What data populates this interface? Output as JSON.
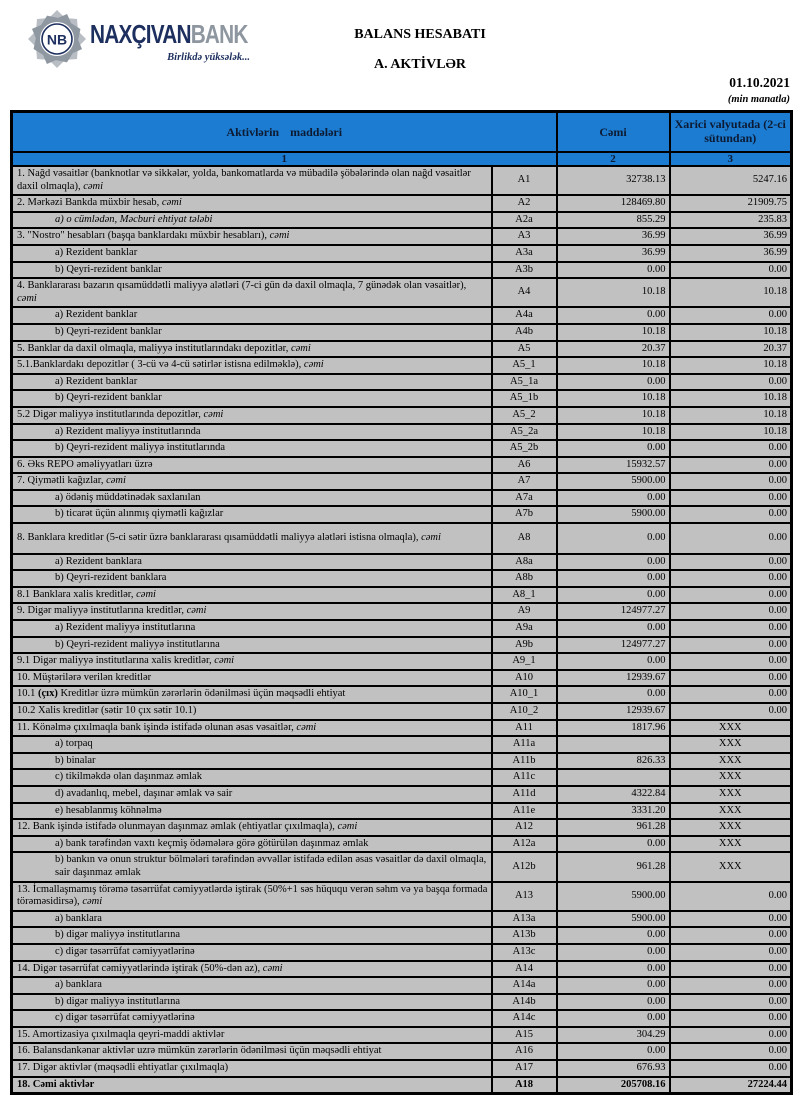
{
  "brand": {
    "monogram": "NB",
    "name_primary": "NAXÇIVAN",
    "name_secondary": "BANK",
    "tagline": "Birlikdə yüksələk...",
    "navy": "#1d2f5e",
    "gray": "#8e969f"
  },
  "page": {
    "title": "BALANS HESABATI",
    "subtitle": "A. AKTİVLƏR",
    "date": "01.10.2021",
    "unit_note": "(min manatla)"
  },
  "colors": {
    "header_blue": "#1b7cd1",
    "row_gray": "#c1c1c1",
    "border": "#000000"
  },
  "table": {
    "col_headers": {
      "items": "Aktivlərin maddələri",
      "total": "Cəmi",
      "foreign": "Xarici valyutada (2-ci sütundan)"
    },
    "col_numbers": {
      "c1": "1",
      "c2": "2",
      "c3": "3"
    },
    "rows": [
      {
        "code": "A1",
        "label": [
          {
            "t": "1. Nağd vəsaitlər (banknotlar və sikkələr, yolda, bankomatlarda və mübadilə şöbələrində olan nağd vəsaitlər daxil olmaqla), "
          },
          {
            "t": "cəmi",
            "s": "i"
          }
        ],
        "total": "32738.13",
        "fx": "5247.16"
      },
      {
        "code": "A2",
        "label": [
          {
            "t": "2. Mərkəzi Bankda müxbir hesab, "
          },
          {
            "t": "cəmi",
            "s": "i"
          }
        ],
        "total": "128469.80",
        "fx": "21909.75"
      },
      {
        "code": "A2a",
        "indent": true,
        "label": [
          {
            "t": "a) o cümlədən, Məcburi ehtiyat tələbi",
            "s": "i"
          }
        ],
        "total": "855.29",
        "fx": "235.83"
      },
      {
        "code": "A3",
        "label": [
          {
            "t": "3. \"Nostro\" hesabları (başqa banklardakı müxbir hesabları), "
          },
          {
            "t": "cəmi",
            "s": "i"
          }
        ],
        "total": "36.99",
        "fx": "36.99"
      },
      {
        "code": "A3a",
        "indent": true,
        "label": [
          {
            "t": "a) Rezident banklar"
          }
        ],
        "total": "36.99",
        "fx": "36.99"
      },
      {
        "code": "A3b",
        "indent": true,
        "label": [
          {
            "t": "b) Qeyri-rezident banklar"
          }
        ],
        "total": "0.00",
        "fx": "0.00"
      },
      {
        "code": "A4",
        "clip": true,
        "label": [
          {
            "t": "4. Banklararası bazarın qısamüddətli maliyyə alətləri (7-ci gün də daxil olmaqla, 7 günədək olan vəsaitlər), "
          },
          {
            "t": "cəmi",
            "s": "i"
          }
        ],
        "total": "10.18",
        "fx": "10.18"
      },
      {
        "code": "A4a",
        "indent": true,
        "label": [
          {
            "t": "a) Rezident banklar"
          }
        ],
        "total": "0.00",
        "fx": "0.00"
      },
      {
        "code": "A4b",
        "indent": true,
        "label": [
          {
            "t": "b) Qeyri-rezident banklar"
          }
        ],
        "total": "10.18",
        "fx": "10.18"
      },
      {
        "code": "A5",
        "label": [
          {
            "t": "5. Banklar da daxil olmaqla, maliyyə institutlarındakı depozitlər, "
          },
          {
            "t": "cəmi",
            "s": "i"
          }
        ],
        "total": "20.37",
        "fx": "20.37"
      },
      {
        "code": "A5_1",
        "label": [
          {
            "t": "5.1.Banklardakı depozitlər ( 3-cü və 4-cü sətirlər istisna edilməklə), "
          },
          {
            "t": "cəmi",
            "s": "i"
          }
        ],
        "total": "10.18",
        "fx": "10.18"
      },
      {
        "code": "A5_1a",
        "indent": true,
        "label": [
          {
            "t": "a) Rezident banklar"
          }
        ],
        "total": "0.00",
        "fx": "0.00"
      },
      {
        "code": "A5_1b",
        "indent": true,
        "label": [
          {
            "t": "b) Qeyri-rezident banklar"
          }
        ],
        "total": "10.18",
        "fx": "10.18"
      },
      {
        "code": "A5_2",
        "label": [
          {
            "t": "5.2 Digər maliyyə institutlarında depozitlər, "
          },
          {
            "t": "cəmi",
            "s": "i"
          }
        ],
        "total": "10.18",
        "fx": "10.18"
      },
      {
        "code": "A5_2a",
        "indent": true,
        "label": [
          {
            "t": "a) Rezident maliyyə institutlarında"
          }
        ],
        "total": "10.18",
        "fx": "10.18"
      },
      {
        "code": "A5_2b",
        "indent": true,
        "label": [
          {
            "t": "b) Qeyri-rezident maliyyə institutlarında"
          }
        ],
        "total": "0.00",
        "fx": "0.00"
      },
      {
        "code": "A6",
        "label": [
          {
            "t": "6. Əks REPO əməliyyatları üzrə"
          }
        ],
        "total": "15932.57",
        "fx": "0.00"
      },
      {
        "code": "A7",
        "label": [
          {
            "t": "7. Qiymətli kağızlar, "
          },
          {
            "t": "cəmi",
            "s": "i"
          }
        ],
        "total": "5900.00",
        "fx": "0.00"
      },
      {
        "code": "A7a",
        "indent": true,
        "label": [
          {
            "t": "a) ödəniş müddətinədək saxlanılan"
          }
        ],
        "total": "0.00",
        "fx": "0.00"
      },
      {
        "code": "A7b",
        "indent": true,
        "label": [
          {
            "t": "b) ticarət üçün alınmış qiymətli kağızlar"
          }
        ],
        "total": "5900.00",
        "fx": "0.00"
      },
      {
        "code": "A8",
        "pad": true,
        "label": [
          {
            "t": "8. Banklara kreditlər (5-ci sətir üzrə banklararası qısamüddətli maliyyə alətləri istisna olmaqla), "
          },
          {
            "t": "cəmi",
            "s": "i"
          }
        ],
        "total": "0.00",
        "fx": "0.00"
      },
      {
        "code": "A8a",
        "indent": true,
        "label": [
          {
            "t": "a) Rezident banklara"
          }
        ],
        "total": "0.00",
        "fx": "0.00"
      },
      {
        "code": "A8b",
        "indent": true,
        "label": [
          {
            "t": "b) Qeyri-rezident banklara"
          }
        ],
        "total": "0.00",
        "fx": "0.00"
      },
      {
        "code": "A8_1",
        "label": [
          {
            "t": "8.1 Banklara xalis kreditlər, "
          },
          {
            "t": "cəmi",
            "s": "i"
          }
        ],
        "total": "0.00",
        "fx": "0.00"
      },
      {
        "code": "A9",
        "label": [
          {
            "t": "9. Digər maliyyə institutlarına kreditlər, "
          },
          {
            "t": "cəmi",
            "s": "i"
          }
        ],
        "total": "124977.27",
        "fx": "0.00"
      },
      {
        "code": "A9a",
        "indent": true,
        "label": [
          {
            "t": "a) Rezident maliyyə institutlarına"
          }
        ],
        "total": "0.00",
        "fx": "0.00"
      },
      {
        "code": "A9b",
        "indent": true,
        "label": [
          {
            "t": "b) Qeyri-rezident maliyyə institutlarına"
          }
        ],
        "total": "124977.27",
        "fx": "0.00"
      },
      {
        "code": "A9_1",
        "label": [
          {
            "t": "9.1 Digər maliyyə institutlarına xalis kreditlər, "
          },
          {
            "t": "cəmi",
            "s": "i"
          }
        ],
        "total": "0.00",
        "fx": "0.00"
      },
      {
        "code": "A10",
        "label": [
          {
            "t": "10. Müştərilərə verilən kreditlər"
          }
        ],
        "total": "12939.67",
        "fx": "0.00"
      },
      {
        "code": "A10_1",
        "label": [
          {
            "t": "10.1 "
          },
          {
            "t": "(çıx)",
            "s": "b"
          },
          {
            "t": " Kreditlər üzrə mümkün zərərlərin ödənilməsi üçün məqsədli ehtiyat"
          }
        ],
        "total": "0.00",
        "fx": "0.00"
      },
      {
        "code": "A10_2",
        "label": [
          {
            "t": "10.2 Xalis kreditlər (sətir 10 çıx sətir 10.1)"
          }
        ],
        "total": "12939.67",
        "fx": "0.00"
      },
      {
        "code": "A11",
        "label": [
          {
            "t": "11. Könəlmə çıxılmaqla bank işində istifadə olunan əsas vəsaitlər, "
          },
          {
            "t": "cəmi",
            "s": "i"
          }
        ],
        "total": "1817.96",
        "fx": "XXX"
      },
      {
        "code": "A11a",
        "indent": true,
        "label": [
          {
            "t": "a) torpaq"
          }
        ],
        "total": "",
        "fx": "XXX"
      },
      {
        "code": "A11b",
        "indent": true,
        "label": [
          {
            "t": "b) binalar"
          }
        ],
        "total": "826.33",
        "fx": "XXX"
      },
      {
        "code": "A11c",
        "indent": true,
        "label": [
          {
            "t": "c) tikilməkdə olan daşınmaz əmlak"
          }
        ],
        "total": "",
        "fx": "XXX"
      },
      {
        "code": "A11d",
        "indent": true,
        "label": [
          {
            "t": "d) avadanlıq, mebel, daşınar əmlak və sair"
          }
        ],
        "total": "4322.84",
        "fx": "XXX"
      },
      {
        "code": "A11e",
        "indent": true,
        "label": [
          {
            "t": "e) hesablanmış köhnəlmə"
          }
        ],
        "total": "3331.20",
        "fx": "XXX"
      },
      {
        "code": "A12",
        "label": [
          {
            "t": "12. Bank işində istifadə olunmayan daşınmaz əmlak (ehtiyatlar çıxılmaqla), "
          },
          {
            "t": "cəmi",
            "s": "i"
          }
        ],
        "total": "961.28",
        "fx": "XXX"
      },
      {
        "code": "A12a",
        "indent": true,
        "label": [
          {
            "t": "a) bank tərəfindən vaxtı keçmiş ödəmələrə görə götürülən daşınmaz əmlak"
          }
        ],
        "total": "0.00",
        "fx": "XXX"
      },
      {
        "code": "A12b",
        "indent": true,
        "label": [
          {
            "t": "b) bankın və onun struktur bölmələri tərəfindən əvvəllər istifadə edilən əsas vəsaitlər də daxil olmaqla, sair daşınmaz əmlak"
          }
        ],
        "total": "961.28",
        "fx": "XXX"
      },
      {
        "code": "A13",
        "label": [
          {
            "t": "13. İcmallaşmamış törəmə təsərrüfat cəmiyyətlərdə iştirak (50%+1 səs hüququ verən səhm və ya başqa formada törəməsidirsə), "
          },
          {
            "t": "cəmi",
            "s": "i"
          }
        ],
        "total": "5900.00",
        "fx": "0.00"
      },
      {
        "code": "A13a",
        "indent": true,
        "label": [
          {
            "t": "a) banklara"
          }
        ],
        "total": "5900.00",
        "fx": "0.00"
      },
      {
        "code": "A13b",
        "indent": true,
        "label": [
          {
            "t": "b) digər maliyyə institutlarına"
          }
        ],
        "total": "0.00",
        "fx": "0.00"
      },
      {
        "code": "A13c",
        "indent": true,
        "label": [
          {
            "t": "c) digər təsərrüfat cəmiyyətlərinə"
          }
        ],
        "total": "0.00",
        "fx": "0.00"
      },
      {
        "code": "A14",
        "label": [
          {
            "t": "14. Digər təsərrüfat cəmiyyətlərində iştirak (50%-dən az), "
          },
          {
            "t": "cəmi",
            "s": "i"
          }
        ],
        "total": "0.00",
        "fx": "0.00"
      },
      {
        "code": "A14a",
        "indent": true,
        "label": [
          {
            "t": "a) banklara"
          }
        ],
        "total": "0.00",
        "fx": "0.00"
      },
      {
        "code": "A14b",
        "indent": true,
        "label": [
          {
            "t": "b) digər maliyyə institutlarına"
          }
        ],
        "total": "0.00",
        "fx": "0.00"
      },
      {
        "code": "A14c",
        "indent": true,
        "label": [
          {
            "t": "c) digər təsərrüfat cəmiyyətlərinə"
          }
        ],
        "total": "0.00",
        "fx": "0.00"
      },
      {
        "code": "A15",
        "label": [
          {
            "t": "15. Amortizasiya çıxılmaqla qeyri-maddi aktivlər"
          }
        ],
        "total": "304.29",
        "fx": "0.00"
      },
      {
        "code": "A16",
        "label": [
          {
            "t": "16. Balansdankənar aktivlər uzrə mümkün zərərlərin ödənilməsi üçün məqsədli ehtiyat"
          }
        ],
        "total": "0.00",
        "fx": "0.00"
      },
      {
        "code": "A17",
        "label": [
          {
            "t": "17. Digər aktivlər (məqsədli ehtiyatlar çıxılmaqla)"
          }
        ],
        "total": "676.93",
        "fx": "0.00"
      },
      {
        "code": "A18",
        "bold": true,
        "label": [
          {
            "t": "18. Cəmi aktivlər"
          }
        ],
        "total": "205708.16",
        "fx": "27224.44"
      }
    ]
  }
}
